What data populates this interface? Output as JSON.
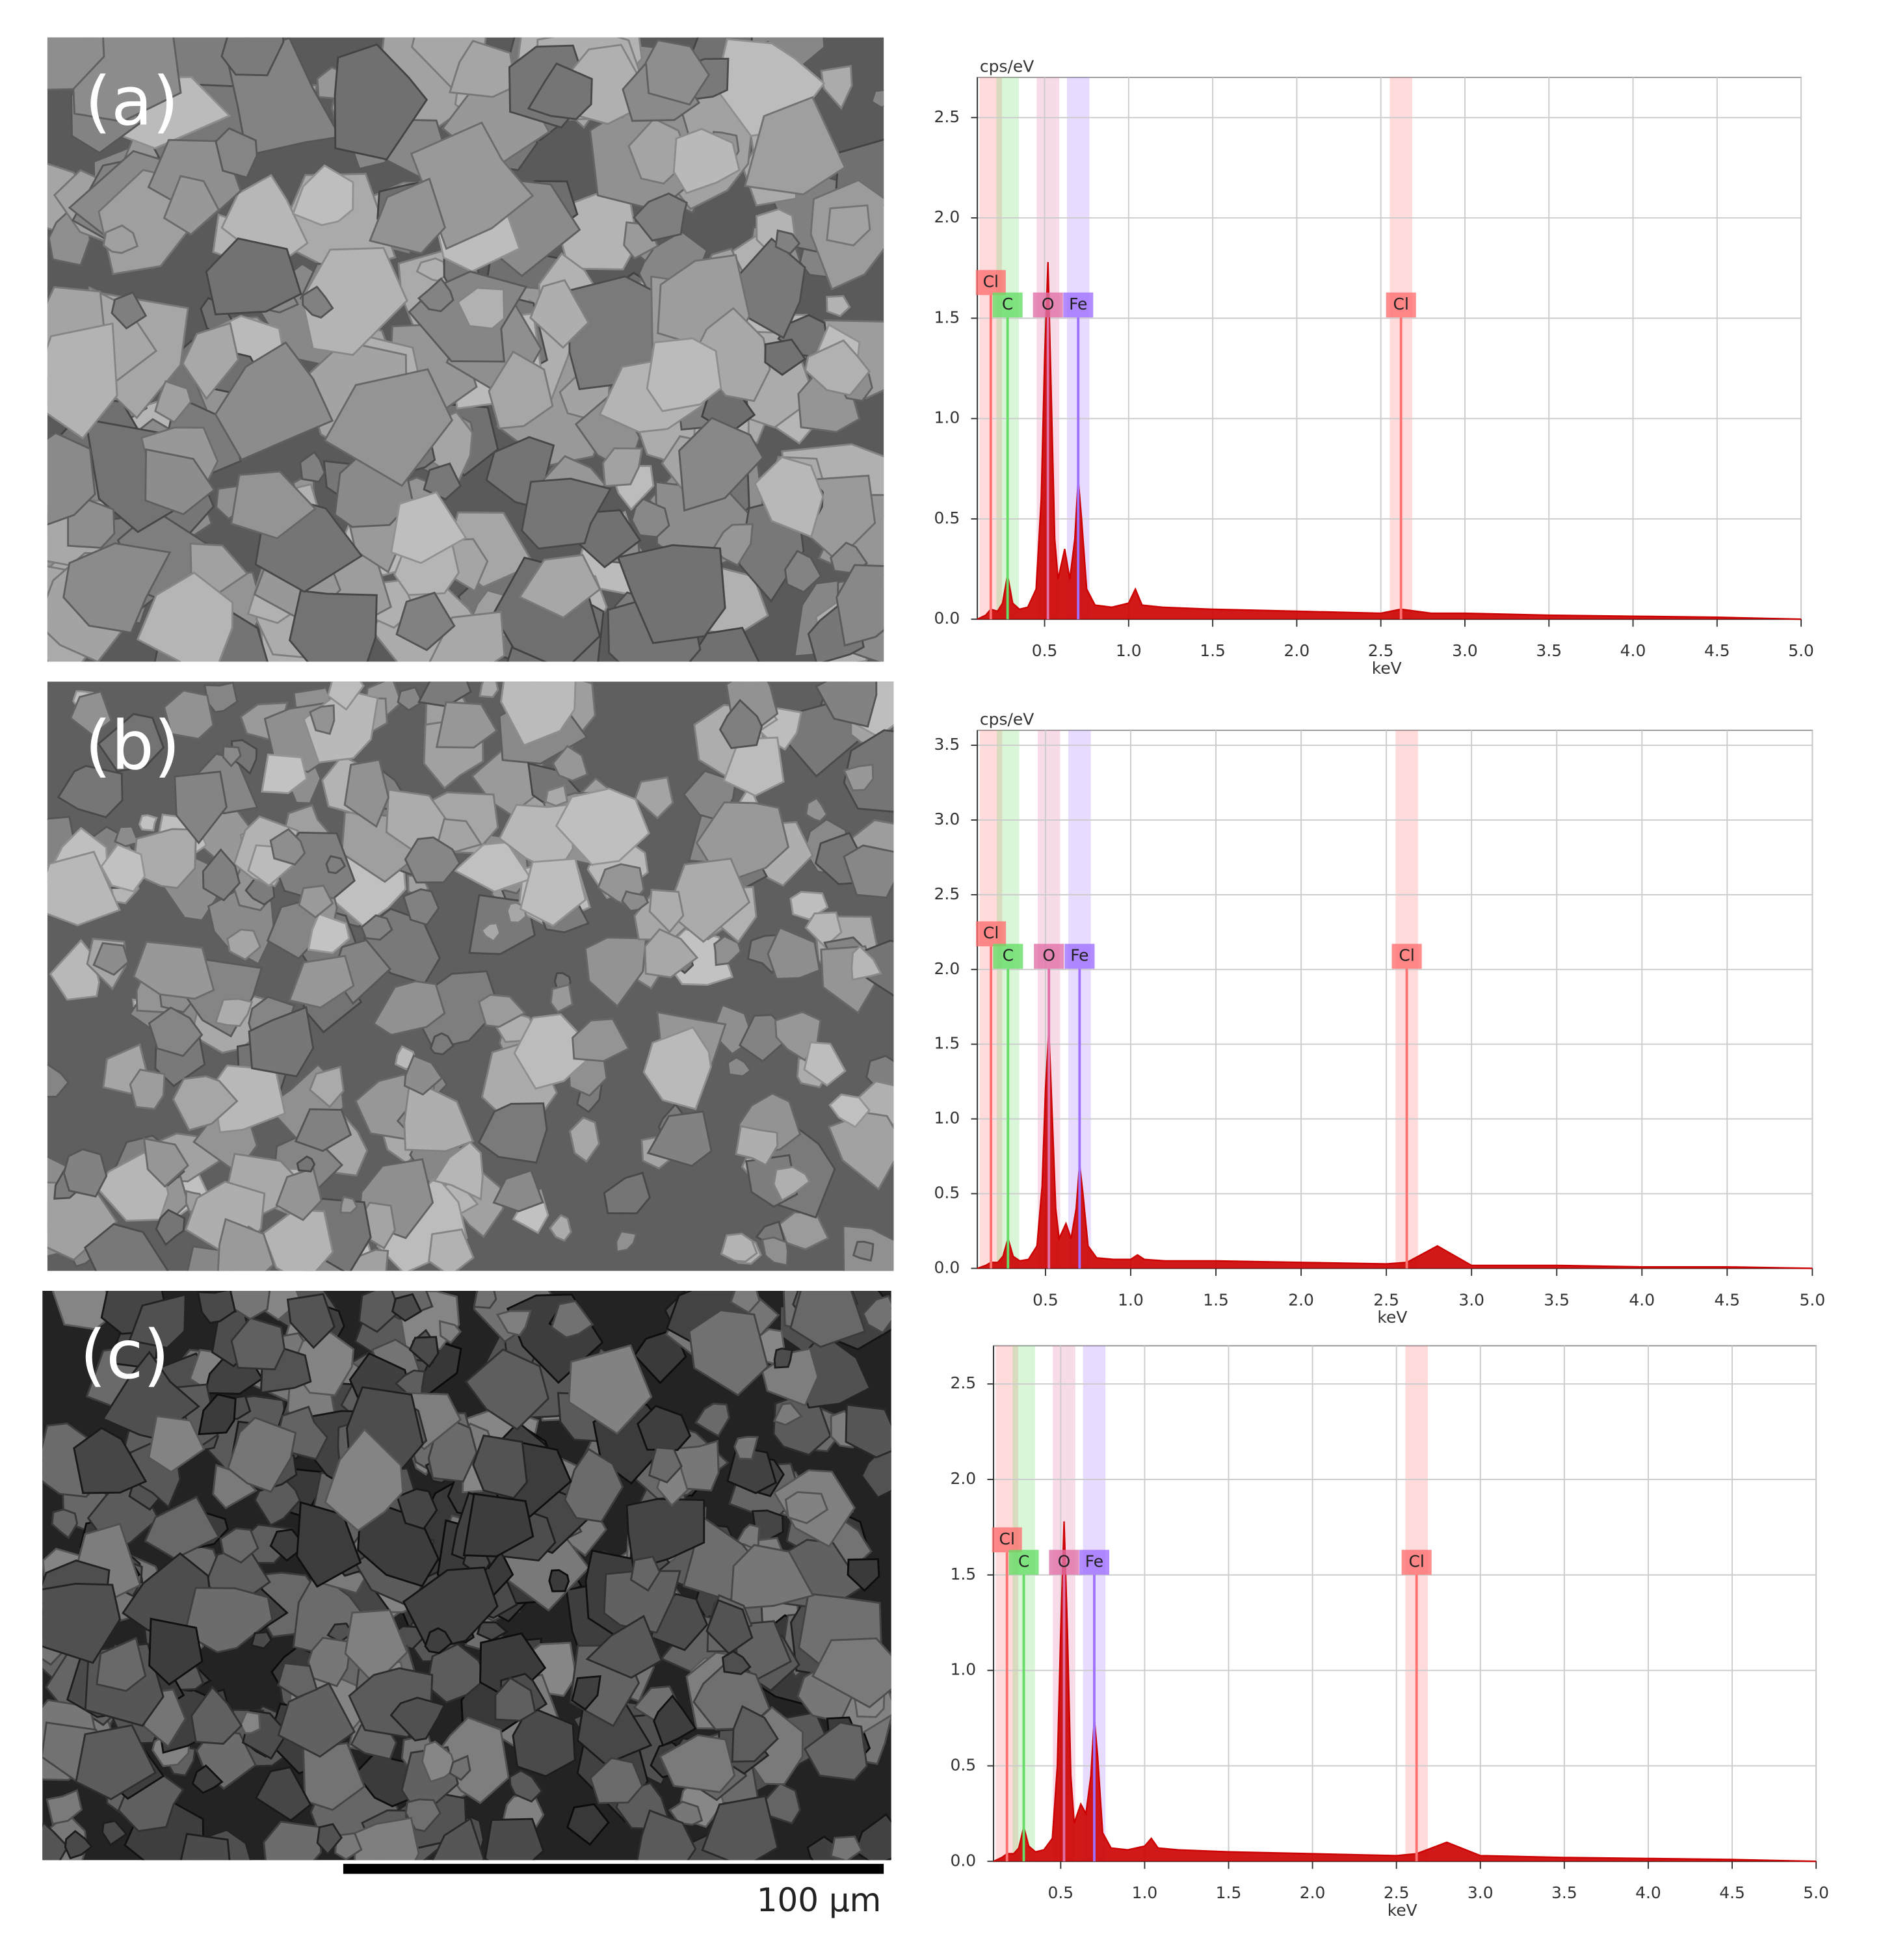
{
  "panels": [
    {
      "label": "(a)"
    },
    {
      "label": "(b)"
    },
    {
      "label": "(c)"
    }
  ],
  "scale_bar": "100 µm",
  "chart_data": [
    {
      "type": "area",
      "ylabel": "cps/eV",
      "xlabel": "keV",
      "x": [
        0.1,
        0.15,
        0.18,
        0.22,
        0.25,
        0.28,
        0.31,
        0.35,
        0.4,
        0.45,
        0.48,
        0.5,
        0.52,
        0.54,
        0.56,
        0.58,
        0.62,
        0.65,
        0.68,
        0.7,
        0.72,
        0.75,
        0.8,
        0.9,
        1.0,
        1.04,
        1.08,
        1.2,
        1.5,
        2.0,
        2.5,
        2.62,
        2.8,
        3.0,
        3.5,
        4.0,
        4.5,
        5.0
      ],
      "series": [
        {
          "color": "#cc0000",
          "values": [
            0,
            0.02,
            0.05,
            0.04,
            0.08,
            0.22,
            0.08,
            0.05,
            0.06,
            0.15,
            0.6,
            1.3,
            1.78,
            1.1,
            0.4,
            0.2,
            0.35,
            0.2,
            0.4,
            0.7,
            0.5,
            0.15,
            0.07,
            0.06,
            0.08,
            0.15,
            0.07,
            0.06,
            0.05,
            0.04,
            0.03,
            0.05,
            0.03,
            0.03,
            0.02,
            0.015,
            0.01,
            0
          ]
        }
      ],
      "markers": [
        {
          "label": "Cl",
          "x": 0.18,
          "color": "#ff7070"
        },
        {
          "label": "C",
          "x": 0.28,
          "color": "#66dd66"
        },
        {
          "label": "O",
          "x": 0.52,
          "color": "#e070a8"
        },
        {
          "label": "Fe",
          "x": 0.7,
          "color": "#a070ff"
        },
        {
          "label": "Cl",
          "x": 2.62,
          "color": "#ff7070"
        }
      ],
      "xlim": [
        0.1,
        5.0
      ],
      "ylim": [
        0,
        2.7
      ],
      "xticks": [
        {
          "value": 0.5,
          "label": "0.5"
        },
        {
          "value": 1,
          "label": "1.0"
        },
        {
          "value": 1.5,
          "label": "1.5"
        },
        {
          "value": 2,
          "label": "2.0"
        },
        {
          "value": 2.5,
          "label": "2.5"
        },
        {
          "value": 3,
          "label": "3.0"
        },
        {
          "value": 3.5,
          "label": "3.5"
        },
        {
          "value": 4,
          "label": "4.0"
        },
        {
          "value": 4.5,
          "label": "4.5"
        },
        {
          "value": 5,
          "label": "5.0"
        }
      ],
      "yticks": [
        {
          "value": 0,
          "label": "0.0"
        },
        {
          "value": 0.5,
          "label": "0.5"
        },
        {
          "value": 1,
          "label": "1.0"
        },
        {
          "value": 1.5,
          "label": "1.5"
        },
        {
          "value": 2,
          "label": "2.0"
        },
        {
          "value": 2.5,
          "label": "2.5"
        }
      ],
      "grid": true
    },
    {
      "type": "area",
      "ylabel": "cps/eV",
      "xlabel": "keV",
      "x": [
        0.1,
        0.15,
        0.18,
        0.22,
        0.25,
        0.28,
        0.31,
        0.35,
        0.4,
        0.45,
        0.48,
        0.5,
        0.52,
        0.54,
        0.56,
        0.58,
        0.62,
        0.65,
        0.68,
        0.7,
        0.72,
        0.75,
        0.8,
        0.9,
        1.0,
        1.04,
        1.08,
        1.2,
        1.5,
        2.0,
        2.5,
        2.62,
        2.8,
        3.0,
        3.5,
        4.0,
        4.5,
        5.0
      ],
      "series": [
        {
          "color": "#cc0000",
          "values": [
            0,
            0.02,
            0.04,
            0.04,
            0.08,
            0.2,
            0.08,
            0.05,
            0.06,
            0.15,
            0.55,
            1.2,
            1.6,
            1.0,
            0.4,
            0.2,
            0.3,
            0.2,
            0.4,
            0.7,
            0.5,
            0.15,
            0.07,
            0.06,
            0.06,
            0.09,
            0.06,
            0.05,
            0.05,
            0.04,
            0.03,
            0.04,
            0.15,
            0.02,
            0.02,
            0.01,
            0.01,
            0
          ]
        }
      ],
      "markers": [
        {
          "label": "Cl",
          "x": 0.18,
          "color": "#ff7070"
        },
        {
          "label": "C",
          "x": 0.28,
          "color": "#66dd66"
        },
        {
          "label": "O",
          "x": 0.52,
          "color": "#e070a8"
        },
        {
          "label": "Fe",
          "x": 0.7,
          "color": "#a070ff"
        },
        {
          "label": "Cl",
          "x": 2.62,
          "color": "#ff7070"
        }
      ],
      "xlim": [
        0.1,
        5.0
      ],
      "ylim": [
        0,
        3.6
      ],
      "xticks": [
        {
          "value": 0.5,
          "label": "0.5"
        },
        {
          "value": 1,
          "label": "1.0"
        },
        {
          "value": 1.5,
          "label": "1.5"
        },
        {
          "value": 2,
          "label": "2.0"
        },
        {
          "value": 2.5,
          "label": "2.5"
        },
        {
          "value": 3,
          "label": "3.0"
        },
        {
          "value": 3.5,
          "label": "3.5"
        },
        {
          "value": 4,
          "label": "4.0"
        },
        {
          "value": 4.5,
          "label": "4.5"
        },
        {
          "value": 5,
          "label": "5.0"
        }
      ],
      "yticks": [
        {
          "value": 0,
          "label": "0.0"
        },
        {
          "value": 0.5,
          "label": "0.5"
        },
        {
          "value": 1,
          "label": "1.0"
        },
        {
          "value": 1.5,
          "label": "1.5"
        },
        {
          "value": 2,
          "label": "2.0"
        },
        {
          "value": 2.5,
          "label": "2.5"
        },
        {
          "value": 3,
          "label": "3.0"
        },
        {
          "value": 3.5,
          "label": "3.5"
        }
      ],
      "grid": true
    },
    {
      "type": "area",
      "xlabel": "keV",
      "x": [
        0.1,
        0.15,
        0.18,
        0.22,
        0.25,
        0.28,
        0.31,
        0.35,
        0.4,
        0.45,
        0.48,
        0.5,
        0.52,
        0.54,
        0.56,
        0.58,
        0.62,
        0.65,
        0.68,
        0.7,
        0.72,
        0.75,
        0.8,
        0.9,
        1.0,
        1.04,
        1.08,
        1.2,
        1.5,
        2.0,
        2.5,
        2.62,
        2.8,
        3.0,
        3.5,
        4.0,
        4.5,
        5.0
      ],
      "series": [
        {
          "color": "#cc0000",
          "values": [
            0,
            0.02,
            0.04,
            0.04,
            0.07,
            0.18,
            0.08,
            0.05,
            0.06,
            0.12,
            0.5,
            1.2,
            1.78,
            1.2,
            0.45,
            0.2,
            0.3,
            0.25,
            0.45,
            0.75,
            0.55,
            0.15,
            0.07,
            0.06,
            0.08,
            0.12,
            0.07,
            0.06,
            0.05,
            0.04,
            0.03,
            0.04,
            0.1,
            0.03,
            0.02,
            0.015,
            0.01,
            0
          ]
        }
      ],
      "markers": [
        {
          "label": "Cl",
          "x": 0.18,
          "color": "#ff7070"
        },
        {
          "label": "C",
          "x": 0.28,
          "color": "#66dd66"
        },
        {
          "label": "O",
          "x": 0.52,
          "color": "#e070a8"
        },
        {
          "label": "Fe",
          "x": 0.7,
          "color": "#a070ff"
        },
        {
          "label": "Cl",
          "x": 2.62,
          "color": "#ff7070"
        }
      ],
      "xlim": [
        0.1,
        5.0
      ],
      "ylim": [
        0,
        2.7
      ],
      "xticks": [
        {
          "value": 0.5,
          "label": "0.5"
        },
        {
          "value": 1,
          "label": "1.0"
        },
        {
          "value": 1.5,
          "label": "1.5"
        },
        {
          "value": 2,
          "label": "2.0"
        },
        {
          "value": 2.5,
          "label": "2.5"
        },
        {
          "value": 3,
          "label": "3.0"
        },
        {
          "value": 3.5,
          "label": "3.5"
        },
        {
          "value": 4,
          "label": "4.0"
        },
        {
          "value": 4.5,
          "label": "4.5"
        },
        {
          "value": 5,
          "label": "5.0"
        }
      ],
      "yticks": [
        {
          "value": 0,
          "label": "0.0"
        },
        {
          "value": 0.5,
          "label": "0.5"
        },
        {
          "value": 1,
          "label": "1.0"
        },
        {
          "value": 1.5,
          "label": "1.5"
        },
        {
          "value": 2,
          "label": "2.0"
        },
        {
          "value": 2.5,
          "label": "2.5"
        }
      ],
      "grid": true
    }
  ]
}
